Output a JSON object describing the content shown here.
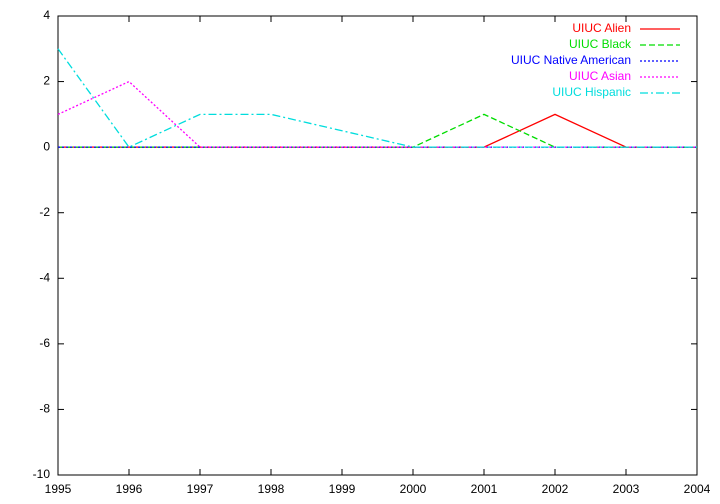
{
  "chart_data": {
    "type": "line",
    "x": [
      1995,
      1996,
      1997,
      1998,
      1999,
      2000,
      2001,
      2002,
      2003,
      2004
    ],
    "series": [
      {
        "name": "UIUC Alien",
        "color": "#ff0000",
        "dash": "solid",
        "values": [
          0,
          0,
          0,
          0,
          0,
          0,
          0,
          1,
          0,
          0
        ]
      },
      {
        "name": "UIUC Black",
        "color": "#00dd00",
        "dash": "dashed",
        "values": [
          0,
          0,
          0,
          0,
          0,
          0,
          1,
          0,
          0,
          0
        ]
      },
      {
        "name": "UIUC Native American",
        "color": "#0000ff",
        "dash": "dotted",
        "values": [
          0,
          0,
          0,
          0,
          0,
          0,
          0,
          0,
          0,
          0
        ]
      },
      {
        "name": "UIUC Asian",
        "color": "#ff00ff",
        "dash": "dotted",
        "values": [
          1,
          2,
          0,
          0,
          0,
          0,
          0,
          0,
          0,
          0
        ]
      },
      {
        "name": "UIUC Hispanic",
        "color": "#00dddd",
        "dash": "dashdot",
        "values": [
          3,
          0,
          1,
          1,
          0.5,
          0,
          0,
          0,
          0,
          0
        ]
      }
    ],
    "xlim": [
      1995,
      2004
    ],
    "xticks": [
      1995,
      1996,
      1997,
      1998,
      1999,
      2000,
      2001,
      2002,
      2003,
      2004
    ],
    "ylim": [
      -10,
      4
    ],
    "yticks": [
      -10,
      -8,
      -6,
      -4,
      -2,
      0,
      2,
      4
    ],
    "legend": "top-right"
  }
}
